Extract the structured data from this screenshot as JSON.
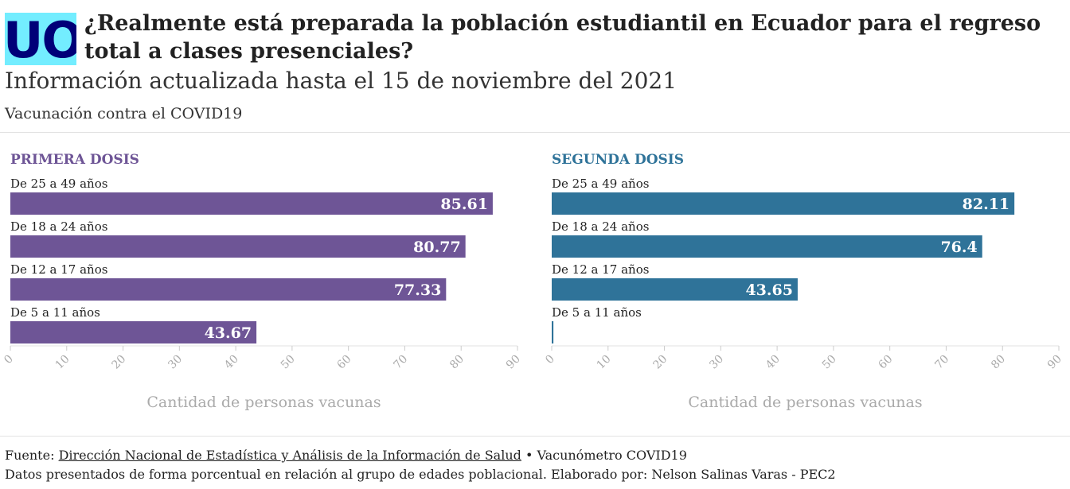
{
  "header": {
    "logo_text": "UOC",
    "title": "¿Realmente está preparada la población estudiantil en Ecuador para el regreso total a clases presenciales?",
    "subtitle": "Información actualizada hasta el 15 de noviembre del 2021",
    "description": "Vacunación contra el COVID19"
  },
  "colors": {
    "logo_background": "#73EDFF",
    "logo_text": "#000078",
    "primera": "#6E5596",
    "segunda": "#2F7399",
    "axis_text": "#aaaaaa"
  },
  "chart_data": [
    {
      "type": "bar",
      "orientation": "horizontal",
      "title": "PRIMERA DOSIS",
      "categories": [
        "De 25 a 49 años",
        "De 18 a 24 años",
        "De 12 a 17 años",
        "De 5 a 11 años"
      ],
      "values": [
        85.61,
        80.77,
        77.33,
        43.67
      ],
      "value_labels": [
        "85.61",
        "80.77",
        "77.33",
        "43.67"
      ],
      "xlabel": "Cantidad de personas vacunas",
      "xlim": [
        0,
        90
      ],
      "xticks": [
        "0",
        "10",
        "20",
        "30",
        "40",
        "50",
        "60",
        "70",
        "80",
        "90"
      ],
      "grid": false
    },
    {
      "type": "bar",
      "orientation": "horizontal",
      "title": "SEGUNDA DOSIS",
      "categories": [
        "De 25 a 49 años",
        "De 18 a 24 años",
        "De 12 a 17 años",
        "De 5 a 11 años"
      ],
      "values": [
        82.11,
        76.4,
        43.65,
        0.3
      ],
      "value_labels": [
        "82.11",
        "76.4",
        "43.65",
        ""
      ],
      "xlabel": "Cantidad de personas vacunas",
      "xlim": [
        0,
        90
      ],
      "xticks": [
        "0",
        "10",
        "20",
        "30",
        "40",
        "50",
        "60",
        "70",
        "80",
        "90"
      ],
      "grid": false
    }
  ],
  "footer": {
    "source_prefix": "Fuente: ",
    "source_link": "Dirección Nacional de Estadística y Análisis de la Información de Salud",
    "source_suffix": " • Vacunómetro COVID19",
    "note": "Datos presentados de forma porcentual en relación al grupo de edades poblacional. Elaborado por: Nelson Salinas Varas - PEC2"
  }
}
